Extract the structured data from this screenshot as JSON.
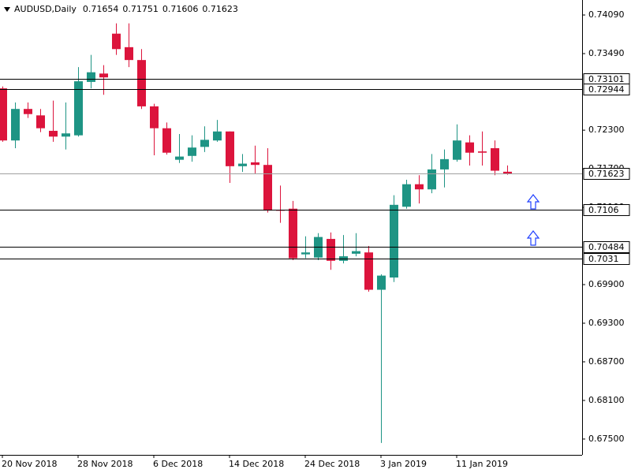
{
  "chart_data": {
    "type": "candlestick",
    "title": "AUDUSD,Daily",
    "categories": [
      "20 Nov 2018",
      null,
      null,
      null,
      null,
      null,
      "28 Nov 2018",
      null,
      null,
      null,
      null,
      null,
      "6 Dec 2018",
      null,
      null,
      null,
      null,
      null,
      "14 Dec 2018",
      null,
      null,
      null,
      null,
      null,
      "24 Dec 2018",
      null,
      null,
      null,
      null,
      null,
      "3 Jan 2019",
      null,
      null,
      null,
      null,
      null,
      "11 Jan 2019",
      null,
      null,
      null,
      null
    ],
    "open": [
      0.7295,
      0.7214,
      0.7263,
      0.7253,
      0.7229,
      0.722,
      0.7222,
      0.7305,
      0.7318,
      0.738,
      0.7359,
      0.7339,
      0.7267,
      0.7233,
      0.7184,
      0.719,
      0.7204,
      0.7214,
      0.7228,
      0.7174,
      0.718,
      0.7176,
      0.7106,
      0.7108,
      0.7037,
      0.7032,
      0.7061,
      0.7027,
      0.7038,
      0.704,
      0.6982,
      0.7001,
      0.7111,
      0.7146,
      0.7138,
      0.7169,
      0.7184,
      0.7211,
      0.7197,
      0.7202,
      0.71654
    ],
    "high": [
      0.7298,
      0.7273,
      0.7273,
      0.7263,
      0.7276,
      0.7273,
      0.7328,
      0.7347,
      0.7331,
      0.7396,
      0.7396,
      0.7356,
      0.7271,
      0.7242,
      0.7224,
      0.7222,
      0.7236,
      0.7246,
      0.7228,
      0.7193,
      0.7206,
      0.7202,
      0.7144,
      0.712,
      0.7065,
      0.707,
      0.7071,
      0.7067,
      0.707,
      0.705,
      0.7006,
      0.7129,
      0.7153,
      0.716,
      0.7193,
      0.72,
      0.7239,
      0.7222,
      0.7228,
      0.7214,
      0.71751
    ],
    "low": [
      0.7212,
      0.7202,
      0.7249,
      0.7227,
      0.7212,
      0.72,
      0.722,
      0.7295,
      0.7285,
      0.7347,
      0.7328,
      0.7263,
      0.7191,
      0.7192,
      0.7179,
      0.7181,
      0.7196,
      0.7212,
      0.7148,
      0.7165,
      0.7163,
      0.7102,
      0.7086,
      0.7028,
      0.7031,
      0.7028,
      0.7013,
      0.7023,
      0.7034,
      0.6979,
      0.6744,
      0.6994,
      0.7108,
      0.7116,
      0.7132,
      0.7141,
      0.7181,
      0.7175,
      0.7175,
      0.716,
      0.71606
    ],
    "close": [
      0.7214,
      0.7263,
      0.7255,
      0.7233,
      0.722,
      0.7225,
      0.7306,
      0.732,
      0.7312,
      0.7356,
      0.7339,
      0.7267,
      0.7233,
      0.7195,
      0.7189,
      0.7203,
      0.7215,
      0.7228,
      0.7174,
      0.7178,
      0.7176,
      0.7105,
      0.7105,
      0.7031,
      0.704,
      0.7064,
      0.7027,
      0.7034,
      0.7042,
      0.6982,
      0.7004,
      0.7114,
      0.7146,
      0.7138,
      0.7169,
      0.7185,
      0.7214,
      0.7195,
      0.7195,
      0.7167,
      0.71623
    ],
    "up_color": "#1e9484",
    "down_color": "#dc143c",
    "levels": [
      0.73101,
      0.72944,
      0.7106,
      0.70484,
      0.7031
    ],
    "level_color": "#000000",
    "current_color": "#a0a0a0",
    "ylim": [
      0.67254,
      0.74323
    ],
    "yticks": [
      {
        "value": 0.7409,
        "label": "0.74090"
      },
      {
        "value": 0.7349,
        "label": "0.73490"
      },
      {
        "value": 0.723,
        "label": "0.72300"
      },
      {
        "value": 0.717,
        "label": "0.71700"
      },
      {
        "value": 0.711,
        "label": "0.71100"
      },
      {
        "value": 0.699,
        "label": "0.69900"
      },
      {
        "value": 0.693,
        "label": "0.69300"
      },
      {
        "value": 0.687,
        "label": "0.68700"
      },
      {
        "value": 0.681,
        "label": "0.68100"
      },
      {
        "value": 0.675,
        "label": "0.67500"
      }
    ]
  }
}
